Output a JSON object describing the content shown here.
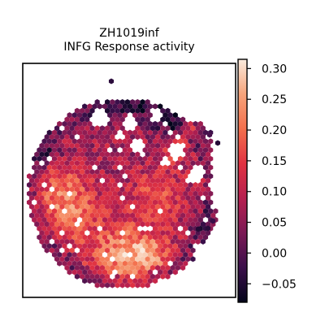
{
  "chart_data": {
    "type": "heatmap",
    "subtype": "hexagonal spatial scatter (Visium spots)",
    "title_line1": "ZH1019inf",
    "title_line2": "INFG Response activity",
    "xlabel": "",
    "ylabel": "",
    "grid": false,
    "axes_ticks": false,
    "colormap": "rocket",
    "colormap_stops": [
      "#03051a",
      "#3b0f4a",
      "#7b1a55",
      "#b61f4f",
      "#e13342",
      "#f3704d",
      "#f6a47b",
      "#faebdd"
    ],
    "colorbar": {
      "vmin": -0.08,
      "vmax": 0.315,
      "ticks": [
        -0.05,
        0.0,
        0.05,
        0.1,
        0.15,
        0.2,
        0.25,
        0.3
      ],
      "tick_labels": [
        "−0.05",
        "0.00",
        "0.05",
        "0.10",
        "0.15",
        "0.20",
        "0.25",
        "0.30"
      ],
      "placement": "right"
    },
    "tissue_value_regions": [
      {
        "region": "bottom-center high cluster",
        "approx_value": 0.24
      },
      {
        "region": "left-center high cluster",
        "approx_value": 0.2
      },
      {
        "region": "right upper bright patch",
        "approx_value": 0.26
      },
      {
        "region": "top fragmented area",
        "approx_value": 0.04
      },
      {
        "region": "right edge dark spots",
        "approx_value": -0.04
      }
    ]
  }
}
